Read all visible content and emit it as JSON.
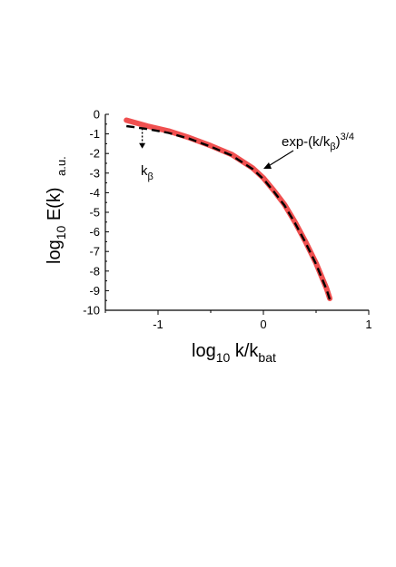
{
  "chart_data": {
    "type": "line",
    "x_axis": {
      "label_main": "log",
      "label_sub": "10",
      "label_rest": " k/k",
      "label_rest_sub": "bat",
      "range": [
        -1.5,
        1.0
      ],
      "ticks": [
        -1,
        0,
        1
      ],
      "tick_labels": [
        "-1",
        "0",
        "1"
      ]
    },
    "y_axis": {
      "label_main": "log",
      "label_sub": "10",
      "label_rest": " E(k)",
      "unit": "a.u.",
      "range": [
        -10,
        0
      ],
      "ticks": [
        0,
        -1,
        -2,
        -3,
        -4,
        -5,
        -6,
        -7,
        -8,
        -9,
        -10
      ],
      "tick_labels": [
        "0",
        "-1",
        "-2",
        "-3",
        "-4",
        "-5",
        "-6",
        "-7",
        "-8",
        "-9",
        "-10"
      ]
    },
    "grid": false,
    "series": [
      {
        "style": "solid",
        "color": "#f05050",
        "x": [
          -1.3,
          -1.1,
          -0.9,
          -0.7,
          -0.5,
          -0.3,
          -0.1,
          0.0,
          0.1,
          0.2,
          0.3,
          0.4,
          0.5,
          0.6,
          0.63
        ],
        "y": [
          -0.3,
          -0.6,
          -0.85,
          -1.2,
          -1.6,
          -2.05,
          -2.75,
          -3.25,
          -3.9,
          -4.6,
          -5.5,
          -6.5,
          -7.6,
          -8.9,
          -9.4
        ]
      },
      {
        "style": "dashed",
        "color": "#000000",
        "x": [
          -1.3,
          -1.1,
          -0.9,
          -0.7,
          -0.5,
          -0.3,
          -0.1,
          0.0,
          0.1,
          0.2,
          0.3,
          0.4,
          0.5,
          0.6,
          0.63
        ],
        "y": [
          -0.6,
          -0.75,
          -0.95,
          -1.25,
          -1.65,
          -2.1,
          -2.8,
          -3.3,
          -3.95,
          -4.65,
          -5.55,
          -6.55,
          -7.65,
          -8.95,
          -9.45
        ]
      }
    ],
    "annotations": {
      "formula_main": "exp-(k/k",
      "formula_sub": "β",
      "formula_close": ")",
      "formula_sup": "3/4",
      "marker_main": "k",
      "marker_sub": "β",
      "marker_x": -1.15
    }
  }
}
